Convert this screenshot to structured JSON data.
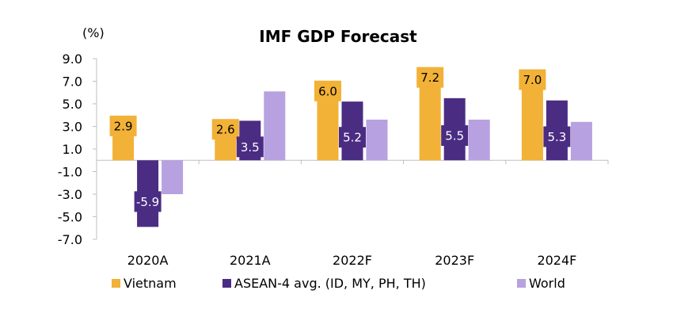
{
  "chart_data": {
    "type": "bar",
    "title": "IMF GDP Forecast",
    "ylabel": "(%)",
    "xlabel": "",
    "categories": [
      "2020A",
      "2021A",
      "2022F",
      "2023F",
      "2024F"
    ],
    "series": [
      {
        "name": "Vietnam",
        "values": [
          2.9,
          2.6,
          6.0,
          7.2,
          7.0
        ],
        "color": "#F2B137",
        "data_labels": true,
        "label_text_color": "#000000"
      },
      {
        "name": "ASEAN-4 avg. (ID, MY, PH, TH)",
        "values": [
          -5.9,
          3.5,
          5.2,
          5.5,
          5.3
        ],
        "color": "#4B2C83",
        "data_labels": true,
        "label_text_color": "#ffffff"
      },
      {
        "name": "World",
        "values": [
          -3.0,
          6.1,
          3.6,
          3.6,
          3.4
        ],
        "color": "#B7A1E0",
        "data_labels": false
      }
    ],
    "yticks": [
      "9.0",
      "7.0",
      "5.0",
      "3.0",
      "1.0",
      "-1.0",
      "-3.0",
      "-5.0",
      "-7.0"
    ],
    "ylim": [
      -7.0,
      9.0
    ],
    "legend_position": "bottom",
    "grid": false
  }
}
